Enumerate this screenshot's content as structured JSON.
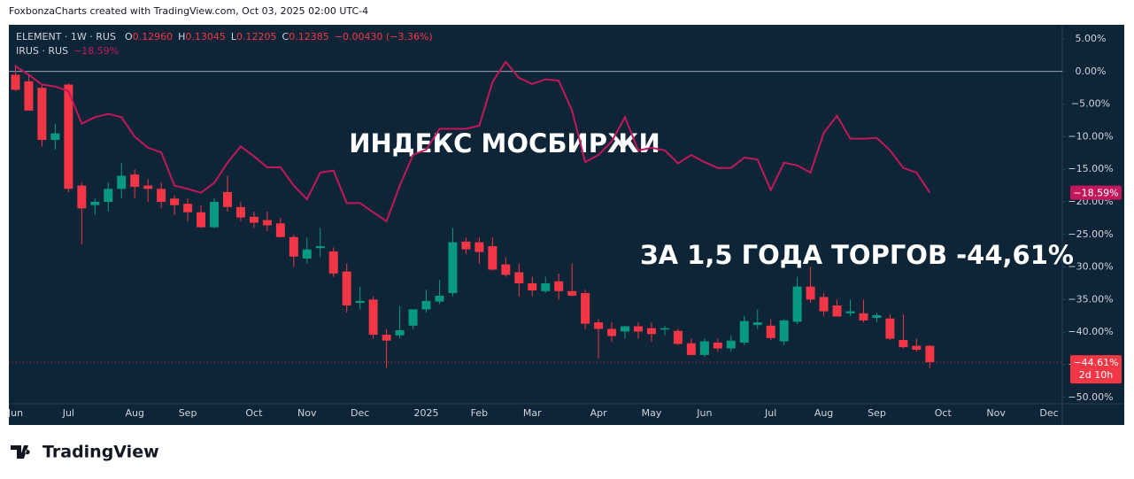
{
  "header": "FoxbonzaCharts created with TradingView.com, Oct 03, 2025 02:00 UTC-4",
  "footer": "TradingView",
  "chart_data": {
    "type": "candlestick",
    "background": "#0e2537",
    "ylim": [
      -51.8,
      6.9
    ],
    "yticks": [
      {
        "value": 5,
        "label": "5.00%"
      },
      {
        "value": 0,
        "label": "0.00%"
      },
      {
        "value": -5,
        "label": "−5.00%"
      },
      {
        "value": -10,
        "label": "−10.00%"
      },
      {
        "value": -15,
        "label": "−15.00%"
      },
      {
        "value": -20,
        "label": "−20.00%"
      },
      {
        "value": -25,
        "label": "−25.00%"
      },
      {
        "value": -30,
        "label": "−30.00%"
      },
      {
        "value": -35,
        "label": "−35.00%"
      },
      {
        "value": -40,
        "label": "−40.00%"
      },
      {
        "value": -45,
        "label": "−45.00%"
      },
      {
        "value": -50,
        "label": "−50.00%"
      }
    ],
    "baseline": 0,
    "xlim": [
      -0.5,
      79
    ],
    "xticks": [
      {
        "value": 0,
        "label": "Jun"
      },
      {
        "value": 4,
        "label": "Jul"
      },
      {
        "value": 9,
        "label": "Aug"
      },
      {
        "value": 13,
        "label": "Sep"
      },
      {
        "value": 18,
        "label": "Oct"
      },
      {
        "value": 22,
        "label": "Nov"
      },
      {
        "value": 26,
        "label": "Dec"
      },
      {
        "value": 31,
        "label": "2025"
      },
      {
        "value": 35,
        "label": "Feb"
      },
      {
        "value": 39,
        "label": "Mar"
      },
      {
        "value": 44,
        "label": "Apr"
      },
      {
        "value": 48,
        "label": "May"
      },
      {
        "value": 52,
        "label": "Jun"
      },
      {
        "value": 57,
        "label": "Jul"
      },
      {
        "value": 61,
        "label": "Aug"
      },
      {
        "value": 65,
        "label": "Sep"
      },
      {
        "value": 70,
        "label": "Oct"
      },
      {
        "value": 74,
        "label": "Nov"
      },
      {
        "value": 78,
        "label": "Dec"
      }
    ],
    "annotations": [
      "ИНДЕКС МОСБИРЖИ",
      "ЗА 1,5 ГОДА ТОРГОВ -44,61%"
    ],
    "series": [
      {
        "name": "ELEMENT · 1W · RUS",
        "type": "candlestick",
        "up_color": "#089981",
        "down_color": "#f23645",
        "legend_fields": [
          {
            "label": "O",
            "value": "0.12960"
          },
          {
            "label": "H",
            "value": "0.13045"
          },
          {
            "label": "L",
            "value": "0.12205"
          },
          {
            "label": "C",
            "value": "0.12385"
          }
        ],
        "change": "−0.00430 (−3.36%)",
        "last_label": "−44.61%",
        "countdown": "2d 10h",
        "open": [
          -0.5,
          -1.5,
          -2.5,
          -10.5,
          -2,
          -17.5,
          -20.5,
          -20,
          -18,
          -15.8,
          -17.5,
          -18,
          -19.5,
          -20.3,
          -21.6,
          -23.9,
          -18.5,
          -20.8,
          -22.3,
          -22.8,
          -23.3,
          -25.4,
          -28.7,
          -27.1,
          -27.6,
          -30.7,
          -35.5,
          -35,
          -40.4,
          -40.5,
          -39,
          -36.5,
          -35.3,
          -34,
          -26.1,
          -26.2,
          -26.8,
          -29.6,
          -30.8,
          -32.5,
          -33.7,
          -32.2,
          -33.7,
          -34,
          -38.5,
          -39.5,
          -39.9,
          -39.1,
          -39.4,
          -39.6,
          -39.8,
          -41.7,
          -43.5,
          -41.6,
          -42.5,
          -41.6,
          -38.9,
          -39,
          -41.4,
          -38.4,
          -33,
          -34.6,
          -35.9,
          -37.1,
          -37.1,
          -37.8,
          -37.9,
          -41.2,
          -42.1,
          -42.1
        ],
        "high": [
          1,
          -0.5,
          -2,
          -8,
          -1.8,
          -17,
          -19.5,
          -17,
          -14,
          -15,
          -16.5,
          -17,
          -19,
          -19.5,
          -20.5,
          -19.5,
          -16,
          -20,
          -21.5,
          -21.5,
          -22.5,
          -25,
          -25.5,
          -24,
          -27,
          -29.5,
          -33,
          -34.5,
          -39.5,
          -36,
          -36.5,
          -33.5,
          -32,
          -24,
          -25.5,
          -25.5,
          -25.5,
          -28.5,
          -29.5,
          -31.5,
          -31.5,
          -31,
          -29.5,
          -33.5,
          -38,
          -38.5,
          -39,
          -38.5,
          -38.5,
          -39,
          -39.5,
          -41,
          -41,
          -41,
          -40.5,
          -37.5,
          -36.5,
          -38,
          -38,
          -31.5,
          -30,
          -34,
          -35,
          -35,
          -35,
          -37,
          -37.3,
          -37.3,
          -41,
          -42
        ],
        "low": [
          -3,
          -6,
          -11.5,
          -12,
          -18.5,
          -26.5,
          -22,
          -21.5,
          -19.5,
          -19.5,
          -20,
          -21,
          -22,
          -23,
          -24,
          -24,
          -21.5,
          -23,
          -24,
          -24.5,
          -25.5,
          -30,
          -29.5,
          -28.5,
          -31.5,
          -37,
          -36.5,
          -41,
          -45.5,
          -41,
          -39.5,
          -37,
          -35.7,
          -34.5,
          -28,
          -29.5,
          -30.5,
          -31.5,
          -34.5,
          -34.5,
          -34,
          -35,
          -34.5,
          -39.5,
          -44,
          -41.5,
          -41,
          -41,
          -41.5,
          -40.5,
          -42,
          -43.5,
          -43.8,
          -43,
          -43,
          -42,
          -39.5,
          -41.2,
          -42,
          -38.8,
          -35.5,
          -37.5,
          -37.5,
          -37.5,
          -38.5,
          -38.5,
          -41.2,
          -42.5,
          -43,
          -45.5
        ],
        "close": [
          -2.8,
          -6,
          -10.5,
          -9.5,
          -18,
          -21,
          -20,
          -18,
          -16,
          -17.7,
          -18,
          -20,
          -20.5,
          -21.6,
          -23.9,
          -20,
          -20.8,
          -22.4,
          -23.2,
          -23.6,
          -25.4,
          -28.4,
          -27.3,
          -26.8,
          -31,
          -35.9,
          -35.2,
          -40.4,
          -41.3,
          -39.7,
          -36.5,
          -35.2,
          -34.4,
          -26.2,
          -27.3,
          -27.7,
          -30.4,
          -31.2,
          -32.5,
          -33.6,
          -32.5,
          -33.7,
          -34.4,
          -38.7,
          -39.5,
          -40.6,
          -39.1,
          -39.9,
          -40.3,
          -39.4,
          -41.8,
          -43.5,
          -41.4,
          -42.5,
          -41.3,
          -38.3,
          -38.5,
          -40.9,
          -38.2,
          -33,
          -35,
          -36.8,
          -37.6,
          -36.8,
          -38.2,
          -37.4,
          -41,
          -42.3,
          -42.7,
          -44.61
        ]
      },
      {
        "name": "IRUS · RUS",
        "type": "line",
        "color": "#c2185b",
        "last_label": "−18.59%",
        "values": [
          0.8,
          -0.5,
          -2,
          -2.3,
          -3,
          -8,
          -7,
          -6.5,
          -7,
          -10,
          -11.7,
          -12.4,
          -17.5,
          -18,
          -18.6,
          -17.1,
          -14,
          -11.5,
          -13,
          -14.7,
          -14.7,
          -17.5,
          -19.6,
          -15.5,
          -15.2,
          -20.2,
          -20.2,
          -21.6,
          -23,
          -17.5,
          -12.8,
          -12,
          -8.8,
          -8.8,
          -8.8,
          -8.3,
          -1.6,
          1.5,
          -1,
          -1.9,
          -1.2,
          -1.4,
          -6,
          -13.9,
          -12.8,
          -10.7,
          -7,
          -12.1,
          -11.7,
          -12.1,
          -14.1,
          -12.8,
          -13.9,
          -14.8,
          -14.8,
          -13.2,
          -13.5,
          -18.2,
          -14,
          -14.4,
          -15.5,
          -9.4,
          -6.8,
          -10.3,
          -10.3,
          -10.2,
          -12.1,
          -14.8,
          -15.5,
          -18.59
        ]
      }
    ]
  }
}
